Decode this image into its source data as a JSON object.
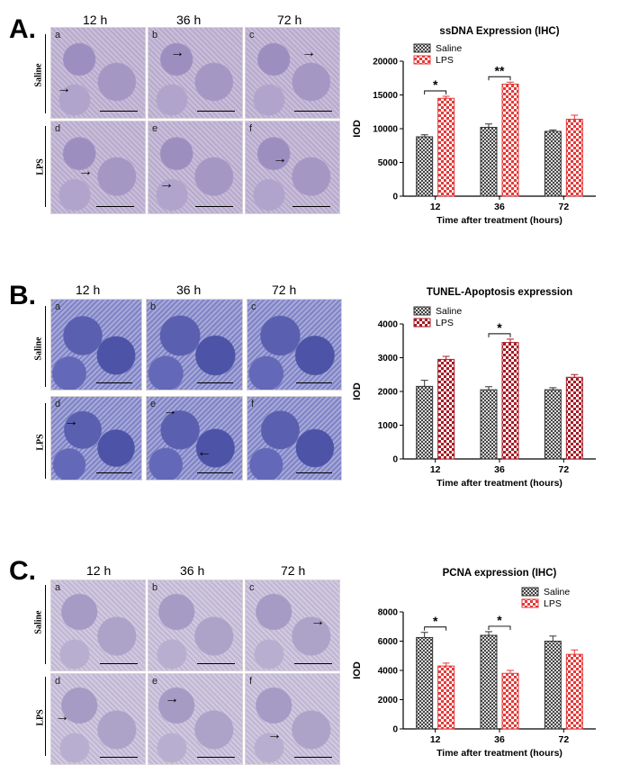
{
  "panels": [
    {
      "letter": "A.",
      "time_labels": [
        "12 h",
        "36 h",
        "72 h"
      ],
      "group_labels": [
        "Saline",
        "LPS"
      ],
      "image_letters": [
        "a",
        "b",
        "c",
        "d",
        "e",
        "f"
      ],
      "stain": "ihc"
    },
    {
      "letter": "B.",
      "time_labels": [
        "12 h",
        "36 h",
        "72 h"
      ],
      "group_labels": [
        "Saline",
        "LPS"
      ],
      "image_letters": [
        "a",
        "b",
        "c",
        "d",
        "e",
        "f"
      ],
      "stain": "tunel"
    },
    {
      "letter": "C.",
      "time_labels": [
        "12 h",
        "36 h",
        "72 h"
      ],
      "group_labels": [
        "Saline",
        "LPS"
      ],
      "image_letters": [
        "a",
        "b",
        "c",
        "d",
        "e",
        "f"
      ],
      "stain": "pcna"
    }
  ],
  "colors": {
    "saline": "#555555",
    "lps_a": "#e33a3a",
    "lps_b": "#a61b25",
    "lps_c": "#e33a3a"
  },
  "chart_data": [
    {
      "type": "bar",
      "title": "ssDNA Expression (IHC)",
      "xlabel": "Time after treatment (hours)",
      "ylabel": "IOD",
      "categories": [
        "12",
        "36",
        "72"
      ],
      "ylim": [
        0,
        20000
      ],
      "yticks": [
        0,
        5000,
        10000,
        15000,
        20000
      ],
      "legend_position": "top-left",
      "series": [
        {
          "name": "Saline",
          "values": [
            8800,
            10200,
            9600
          ],
          "errors": [
            300,
            500,
            200
          ]
        },
        {
          "name": "LPS",
          "values": [
            14500,
            16600,
            11400
          ],
          "errors": [
            300,
            300,
            600
          ]
        }
      ],
      "significance": [
        {
          "category": "12",
          "label": "*"
        },
        {
          "category": "36",
          "label": "**"
        }
      ]
    },
    {
      "type": "bar",
      "title": "TUNEL-Apoptosis expression",
      "xlabel": "Time after treatment (hours)",
      "ylabel": "IOD",
      "categories": [
        "12",
        "36",
        "72"
      ],
      "ylim": [
        0,
        4000
      ],
      "yticks": [
        0,
        1000,
        2000,
        3000,
        4000
      ],
      "legend_position": "top-left",
      "series": [
        {
          "name": "Saline",
          "values": [
            2150,
            2050,
            2050
          ],
          "errors": [
            180,
            90,
            60
          ]
        },
        {
          "name": "LPS",
          "values": [
            2950,
            3450,
            2420
          ],
          "errors": [
            90,
            100,
            80
          ]
        }
      ],
      "significance": [
        {
          "category": "36",
          "label": "*"
        }
      ]
    },
    {
      "type": "bar",
      "title": "PCNA expression (IHC)",
      "xlabel": "Time after treatment (hours)",
      "ylabel": "IOD",
      "categories": [
        "12",
        "36",
        "72"
      ],
      "ylim": [
        0,
        8000
      ],
      "yticks": [
        0,
        2000,
        4000,
        6000,
        8000
      ],
      "legend_position": "top-right",
      "series": [
        {
          "name": "Saline",
          "values": [
            6250,
            6400,
            6000
          ],
          "errors": [
            350,
            250,
            350
          ]
        },
        {
          "name": "LPS",
          "values": [
            4300,
            3800,
            5100
          ],
          "errors": [
            200,
            200,
            300
          ]
        }
      ],
      "significance": [
        {
          "category": "12",
          "label": "*"
        },
        {
          "category": "36",
          "label": "*"
        }
      ]
    }
  ]
}
